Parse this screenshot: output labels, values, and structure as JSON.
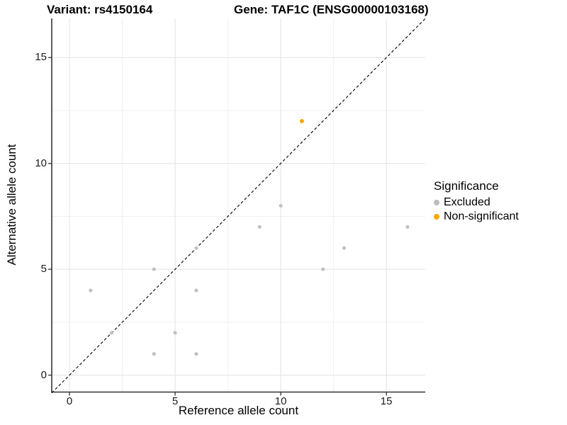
{
  "header": {
    "title_left": "Variant: rs4150164",
    "title_right": "Gene: TAF1C (ENSG00000103168)"
  },
  "chart_data": {
    "type": "scatter",
    "title": "Variant: rs4150164  /  Gene: TAF1C (ENSG00000103168)",
    "xlabel": "Reference allele count",
    "ylabel": "Alternative allele count",
    "xlim": [
      -0.84,
      16.84
    ],
    "ylim": [
      -0.8,
      16.85
    ],
    "x_ticks": [
      0,
      5,
      10,
      15
    ],
    "y_ticks": [
      0,
      5,
      10,
      15
    ],
    "x_minor_ticks": [
      2.5,
      7.5,
      12.5
    ],
    "y_minor_ticks": [
      2.5,
      7.5,
      12.5
    ],
    "grid": true,
    "identity_line": {
      "type": "dashed",
      "equation": "y = x"
    },
    "legend": {
      "title": "Significance",
      "position": "right"
    },
    "series": [
      {
        "name": "Excluded",
        "color": "#BEBEBE",
        "point_radius": 2.5,
        "points": [
          [
            1,
            4
          ],
          [
            2,
            2
          ],
          [
            4,
            1
          ],
          [
            4,
            5
          ],
          [
            5,
            2
          ],
          [
            6,
            1
          ],
          [
            6,
            4
          ],
          [
            6,
            6
          ],
          [
            9,
            7
          ],
          [
            10,
            8
          ],
          [
            12,
            5
          ],
          [
            13,
            6
          ],
          [
            16,
            7
          ]
        ]
      },
      {
        "name": "Non-significant",
        "color": "#FFA500",
        "point_radius": 3,
        "points": [
          [
            11,
            12
          ]
        ]
      }
    ]
  },
  "colors": {
    "background": "#ffffff",
    "grid_major": "#e3e3e3",
    "grid_minor": "#f0f0f0",
    "axis_line": "#333333",
    "identity_line": "#111111",
    "tick_text": "#1a1a1a"
  }
}
